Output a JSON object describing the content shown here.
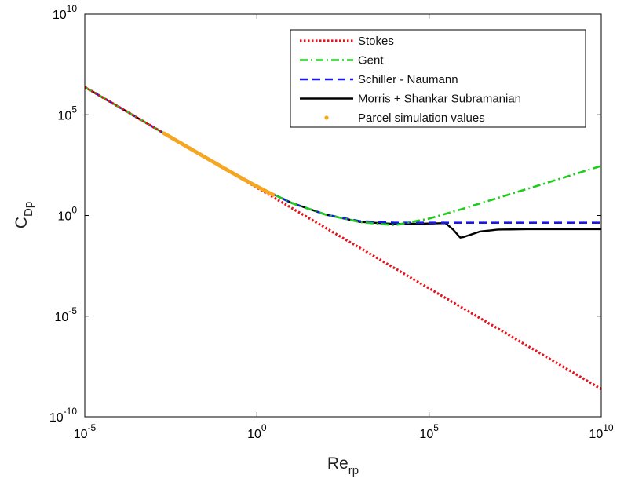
{
  "chart_data": {
    "type": "line",
    "title": "",
    "xlabel": {
      "base": "Re",
      "sub": "rp"
    },
    "ylabel": {
      "base": "C",
      "sub": "Dp"
    },
    "x_scale": "log",
    "y_scale": "log",
    "xlim": [
      1e-05,
      10000000000.0
    ],
    "ylim": [
      1e-10,
      10000000000.0
    ],
    "x_ticks": [
      {
        "value": 1e-05,
        "base": "10",
        "exp": "-5"
      },
      {
        "value": 1,
        "base": "10",
        "exp": "0"
      },
      {
        "value": 100000.0,
        "base": "10",
        "exp": "5"
      },
      {
        "value": 10000000000.0,
        "base": "10",
        "exp": "10"
      }
    ],
    "y_ticks": [
      {
        "value": 1e-10,
        "base": "10",
        "exp": "-10"
      },
      {
        "value": 1e-05,
        "base": "10",
        "exp": "-5"
      },
      {
        "value": 1,
        "base": "10",
        "exp": "0"
      },
      {
        "value": 100000.0,
        "base": "10",
        "exp": "5"
      },
      {
        "value": 10000000000.0,
        "base": "10",
        "exp": "10"
      }
    ],
    "grid": false,
    "legend_position": "top-right",
    "series": [
      {
        "name": "Stokes",
        "color": "#e8121a",
        "style": "dotted",
        "x": [
          1e-05,
          0.0001,
          0.001,
          0.01,
          0.1,
          1,
          10,
          100,
          1000.0,
          10000.0,
          100000.0,
          1000000.0,
          10000000.0,
          100000000.0,
          1000000000.0,
          10000000000.0
        ],
        "y": [
          2400000.0,
          240000.0,
          24000.0,
          2400,
          240,
          24,
          2.4,
          0.24,
          0.024,
          0.0024,
          0.00024,
          2.4e-05,
          2.4e-06,
          2.4e-07,
          2.4e-08,
          2.4e-09
        ]
      },
      {
        "name": "Gent",
        "color": "#1ccd1c",
        "style": "dashdot",
        "x": [
          1e-05,
          0.0001,
          0.001,
          0.01,
          0.1,
          1,
          10,
          100,
          1000.0,
          10000.0,
          100000.0,
          1000000.0,
          10000000.0,
          100000000.0,
          1000000000.0,
          10000000000.0
        ],
        "y": [
          2400000.0,
          240000.0,
          24000.0,
          2400,
          240,
          27,
          4.2,
          1.1,
          0.47,
          0.33,
          0.7,
          2.2,
          7.5,
          25,
          85,
          290
        ]
      },
      {
        "name": "Schiller - Naumann",
        "color": "#1717e6",
        "style": "dashed",
        "x": [
          1e-05,
          0.0001,
          0.001,
          0.01,
          0.1,
          1,
          10,
          100,
          1000.0,
          10000.0,
          100000.0,
          1000000.0,
          10000000.0,
          100000000.0,
          1000000000.0,
          10000000000.0
        ],
        "y": [
          2400000.0,
          240000.0,
          24000.0,
          2400,
          240,
          28,
          4.2,
          1.1,
          0.52,
          0.44,
          0.44,
          0.44,
          0.44,
          0.44,
          0.44,
          0.44
        ]
      },
      {
        "name": "Morris + Shankar Subramanian",
        "color": "#000000",
        "style": "solid",
        "x": [
          1e-05,
          0.0001,
          0.001,
          0.01,
          0.1,
          1,
          10,
          100,
          1000.0,
          10000.0,
          100000.0,
          300000.0,
          500000.0,
          800000.0,
          1000000.0,
          3000000.0,
          10000000.0,
          100000000.0,
          1000000000.0,
          10000000000.0
        ],
        "y": [
          2400000.0,
          240000.0,
          24000.0,
          2400,
          240,
          28,
          4.3,
          1.1,
          0.48,
          0.38,
          0.4,
          0.42,
          0.2,
          0.08,
          0.085,
          0.16,
          0.2,
          0.21,
          0.21,
          0.21
        ]
      },
      {
        "name": "Parcel simulation values",
        "color": "#f5a623",
        "style": "markers",
        "x_range": [
          0.002,
          3.0
        ],
        "slope": -1,
        "coef": 24
      }
    ]
  }
}
